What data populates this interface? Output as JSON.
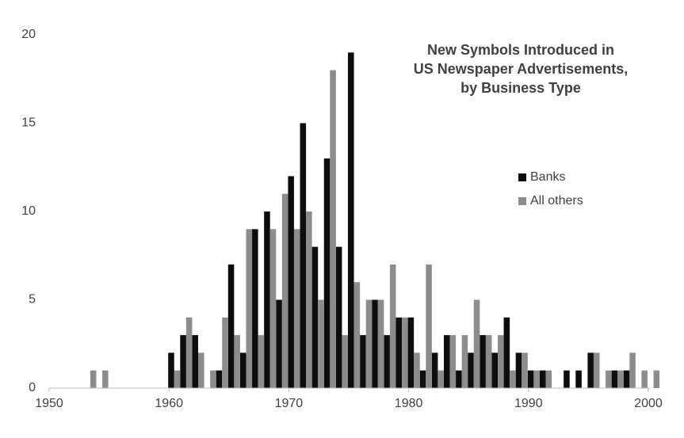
{
  "chart_data": {
    "type": "bar",
    "title": [
      "New Symbols Introduced in",
      "US Newspaper Advertisements,",
      "by Business Type"
    ],
    "x": [
      1953,
      1954,
      1955,
      1956,
      1957,
      1958,
      1959,
      1960,
      1961,
      1962,
      1963,
      1964,
      1965,
      1966,
      1967,
      1968,
      1969,
      1970,
      1971,
      1972,
      1973,
      1974,
      1975,
      1976,
      1977,
      1978,
      1979,
      1980,
      1981,
      1982,
      1983,
      1984,
      1985,
      1986,
      1987,
      1988,
      1989,
      1990,
      1991,
      1992,
      1993,
      1994,
      1995,
      1996,
      1997,
      1998,
      1999,
      2000
    ],
    "series": [
      {
        "name": "Banks",
        "color": "#0d0d0d",
        "values": [
          0,
          0,
          0,
          0,
          0,
          0,
          0,
          2,
          3,
          3,
          0,
          1,
          7,
          2,
          9,
          10,
          5,
          12,
          15,
          8,
          13,
          8,
          19,
          3,
          5,
          3,
          4,
          4,
          1,
          2,
          3,
          1,
          2,
          3,
          2,
          4,
          2,
          1,
          1,
          0,
          1,
          1,
          2,
          0,
          1,
          1,
          0,
          0
        ]
      },
      {
        "name": "All others",
        "color": "#8c8c8c",
        "values": [
          1,
          1,
          0,
          0,
          0,
          0,
          0,
          1,
          4,
          2,
          1,
          4,
          3,
          9,
          3,
          9,
          11,
          9,
          10,
          5,
          18,
          3,
          6,
          5,
          5,
          7,
          4,
          2,
          7,
          1,
          3,
          3,
          5,
          3,
          3,
          1,
          2,
          1,
          1,
          0,
          0,
          0,
          2,
          1,
          1,
          2,
          1,
          1
        ]
      }
    ],
    "xlim": [
      1950,
      2000
    ],
    "xticks": [
      1950,
      1960,
      1970,
      1980,
      1990,
      2000
    ],
    "ylim": [
      0,
      20
    ],
    "yticks": [
      0,
      5,
      10,
      15,
      20
    ],
    "grid": false,
    "legend_position": "right"
  }
}
